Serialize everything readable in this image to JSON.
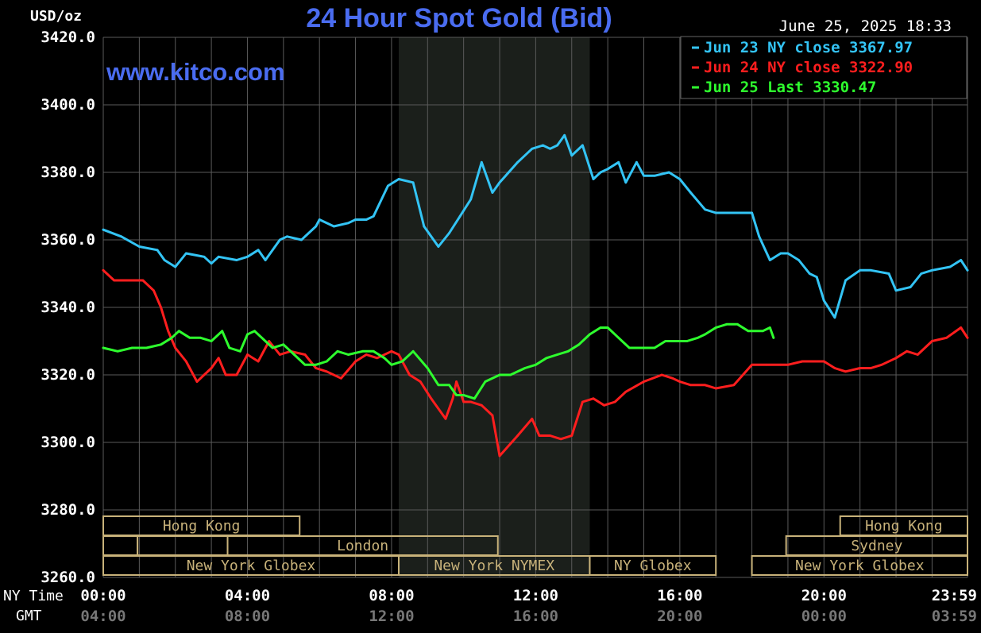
{
  "header": {
    "unit": "USD/oz",
    "title": "24 Hour Spot Gold (Bid)",
    "timestamp": "June 25, 2025 18:33",
    "watermark": "www.kitco.com"
  },
  "colors": {
    "background": "#000000",
    "grid": "#5a5a5a",
    "title": "#4a6cf0",
    "jun23": "#33c4f5",
    "jun24": "#ff1e1e",
    "jun25": "#2eff2e",
    "session_box": "#c8b27a",
    "nymex_shade": "#1b1f1b",
    "gmt_text": "#777777",
    "axis_text": "#ffffff"
  },
  "legend": [
    {
      "label": "Jun 23 NY close 3367.97",
      "color": "#33c4f5"
    },
    {
      "label": "Jun 24 NY close 3322.90",
      "color": "#ff1e1e"
    },
    {
      "label": "Jun 25 Last 3330.47",
      "color": "#2eff2e"
    }
  ],
  "x_axis": {
    "ny_label": "NY Time",
    "gmt_label": "GMT",
    "ny_ticks": [
      "00:00",
      "04:00",
      "08:00",
      "12:00",
      "16:00",
      "20:00",
      "23:59"
    ],
    "gmt_ticks": [
      "04:00",
      "08:00",
      "12:00",
      "16:00",
      "20:00",
      "00:00",
      "03:59"
    ],
    "tick_hours": [
      0,
      4,
      8,
      12,
      16,
      20,
      23.983
    ]
  },
  "sessions": [
    {
      "label": "Hong Kong",
      "row": 0,
      "start": 0,
      "end": 5.45
    },
    {
      "label": "Hong Kong",
      "row": 0,
      "start": 20.45,
      "end": 23.983
    },
    {
      "label": "",
      "row": 1,
      "start": 0,
      "end": 0.95
    },
    {
      "label": "",
      "row": 1,
      "start": 0.95,
      "end": 3.45
    },
    {
      "label": "London",
      "row": 1,
      "start": 3.45,
      "end": 10.95
    },
    {
      "label": "Sydney",
      "row": 1,
      "start": 18.95,
      "end": 23.983
    },
    {
      "label": "New York Globex",
      "row": 2,
      "start": 0,
      "end": 8.2
    },
    {
      "label": "New York NYMEX",
      "row": 2,
      "start": 8.2,
      "end": 13.5
    },
    {
      "label": "NY Globex",
      "row": 2,
      "start": 13.5,
      "end": 17.0
    },
    {
      "label": "New York Globex",
      "row": 2,
      "start": 18.0,
      "end": 23.983
    }
  ],
  "chart_data": {
    "type": "line",
    "title": "24 Hour Spot Gold (Bid)",
    "ylabel": "USD/oz",
    "xlabel": "NY Time",
    "xlim": [
      0,
      23.983
    ],
    "ylim": [
      3260,
      3420
    ],
    "y_ticks": [
      "3260.0",
      "3280.0",
      "3300.0",
      "3320.0",
      "3340.0",
      "3360.0",
      "3380.0",
      "3400.0",
      "3420.0"
    ],
    "y_tick_values": [
      3260,
      3280,
      3300,
      3320,
      3340,
      3360,
      3380,
      3400,
      3420
    ],
    "nymex_session_hours": [
      8.2,
      13.5
    ],
    "grid": true,
    "legend_position": "top-right",
    "series": [
      {
        "name": "Jun 23 NY close 3367.97",
        "color": "#33c4f5",
        "x": [
          0,
          0.5,
          1.0,
          1.5,
          1.7,
          2.0,
          2.3,
          2.8,
          3.0,
          3.2,
          3.7,
          4.0,
          4.3,
          4.5,
          4.9,
          5.1,
          5.5,
          5.9,
          6.0,
          6.4,
          6.8,
          7.0,
          7.3,
          7.5,
          7.9,
          8.2,
          8.6,
          8.9,
          9.3,
          9.6,
          9.9,
          10.2,
          10.5,
          10.8,
          11.0,
          11.5,
          11.9,
          12.2,
          12.4,
          12.6,
          12.8,
          13.0,
          13.3,
          13.6,
          13.8,
          14.0,
          14.3,
          14.5,
          14.8,
          15.0,
          15.3,
          15.7,
          16.0,
          16.3,
          16.7,
          17.0,
          17.3,
          17.5,
          17.8,
          18.0,
          18.2,
          18.5,
          18.8,
          19.0,
          19.3,
          19.6,
          19.8,
          20.0,
          20.3,
          20.6,
          21.0,
          21.3,
          21.8,
          22.0,
          22.4,
          22.7,
          23.0,
          23.5,
          23.8,
          23.983
        ],
        "values": [
          3363,
          3361,
          3358,
          3357,
          3354,
          3352,
          3356,
          3355,
          3353,
          3355,
          3354,
          3355,
          3357,
          3354,
          3360,
          3361,
          3360,
          3364,
          3366,
          3364,
          3365,
          3366,
          3366,
          3367,
          3376,
          3378,
          3377,
          3364,
          3358,
          3362,
          3367,
          3372,
          3383,
          3374,
          3377,
          3383,
          3387,
          3388,
          3387,
          3388,
          3391,
          3385,
          3388,
          3378,
          3380,
          3381,
          3383,
          3377,
          3383,
          3379,
          3379,
          3380,
          3378,
          3374,
          3369,
          3368,
          3368,
          3368,
          3368,
          3368,
          3361,
          3354,
          3356,
          3356,
          3354,
          3350,
          3349,
          3342,
          3337,
          3348,
          3351,
          3351,
          3350,
          3345,
          3346,
          3350,
          3351,
          3352,
          3354,
          3351
        ]
      },
      {
        "name": "Jun 24 NY close 3322.90",
        "color": "#ff1e1e",
        "x": [
          0,
          0.3,
          0.8,
          1.1,
          1.4,
          1.6,
          1.8,
          2.0,
          2.3,
          2.6,
          3.0,
          3.2,
          3.4,
          3.7,
          4.0,
          4.3,
          4.6,
          4.9,
          5.2,
          5.6,
          5.9,
          6.2,
          6.6,
          7.0,
          7.3,
          7.6,
          8.0,
          8.2,
          8.5,
          8.8,
          9.1,
          9.5,
          9.7,
          9.8,
          10.0,
          10.2,
          10.5,
          10.8,
          11.0,
          11.5,
          11.9,
          12.1,
          12.4,
          12.7,
          13.0,
          13.3,
          13.6,
          13.9,
          14.2,
          14.5,
          15.0,
          15.5,
          15.8,
          16.0,
          16.3,
          16.7,
          17.0,
          17.5,
          18.0,
          18.4,
          18.8,
          19.0,
          19.4,
          19.8,
          20.0,
          20.3,
          20.6,
          21.0,
          21.3,
          21.6,
          22.0,
          22.3,
          22.6,
          23.0,
          23.4,
          23.8,
          23.983
        ],
        "values": [
          3351,
          3348,
          3348,
          3348,
          3345,
          3340,
          3333,
          3328,
          3324,
          3318,
          3322,
          3325,
          3320,
          3320,
          3326,
          3324,
          3330,
          3326,
          3327,
          3326,
          3322,
          3321,
          3319,
          3324,
          3326,
          3325,
          3327,
          3326,
          3320,
          3318,
          3313,
          3307,
          3313,
          3318,
          3312,
          3312,
          3311,
          3308,
          3296,
          3302,
          3307,
          3302,
          3302,
          3301,
          3302,
          3312,
          3313,
          3311,
          3312,
          3315,
          3318,
          3320,
          3319,
          3318,
          3317,
          3317,
          3316,
          3317,
          3323,
          3323,
          3323,
          3323,
          3324,
          3324,
          3324,
          3322,
          3321,
          3322,
          3322,
          3323,
          3325,
          3327,
          3326,
          3330,
          3331,
          3334,
          3331
        ]
      },
      {
        "name": "Jun 25 Last 3330.47",
        "color": "#2eff2e",
        "x": [
          0,
          0.4,
          0.8,
          1.2,
          1.6,
          1.9,
          2.1,
          2.4,
          2.7,
          3.0,
          3.3,
          3.5,
          3.8,
          4.0,
          4.2,
          4.5,
          4.7,
          5.0,
          5.3,
          5.6,
          5.9,
          6.2,
          6.5,
          6.8,
          7.2,
          7.5,
          7.8,
          8.0,
          8.3,
          8.6,
          9.0,
          9.3,
          9.6,
          9.8,
          10.0,
          10.3,
          10.6,
          11.0,
          11.3,
          11.7,
          12.0,
          12.3,
          12.6,
          12.9,
          13.2,
          13.5,
          13.8,
          14.0,
          14.3,
          14.6,
          15.0,
          15.3,
          15.6,
          15.9,
          16.2,
          16.5,
          16.7,
          17.0,
          17.3,
          17.6,
          17.9,
          18.1,
          18.3,
          18.5,
          18.6
        ],
        "values": [
          3328,
          3327,
          3328,
          3328,
          3329,
          3331,
          3333,
          3331,
          3331,
          3330,
          3333,
          3328,
          3327,
          3332,
          3333,
          3330,
          3328,
          3329,
          3326,
          3323,
          3323,
          3324,
          3327,
          3326,
          3327,
          3327,
          3325,
          3323,
          3324,
          3327,
          3322,
          3317,
          3317,
          3314,
          3314,
          3313,
          3318,
          3320,
          3320,
          3322,
          3323,
          3325,
          3326,
          3327,
          3329,
          3332,
          3334,
          3334,
          3331,
          3328,
          3328,
          3328,
          3330,
          3330,
          3330,
          3331,
          3332,
          3334,
          3335,
          3335,
          3333,
          3333,
          3333,
          3334,
          3331
        ]
      }
    ]
  }
}
